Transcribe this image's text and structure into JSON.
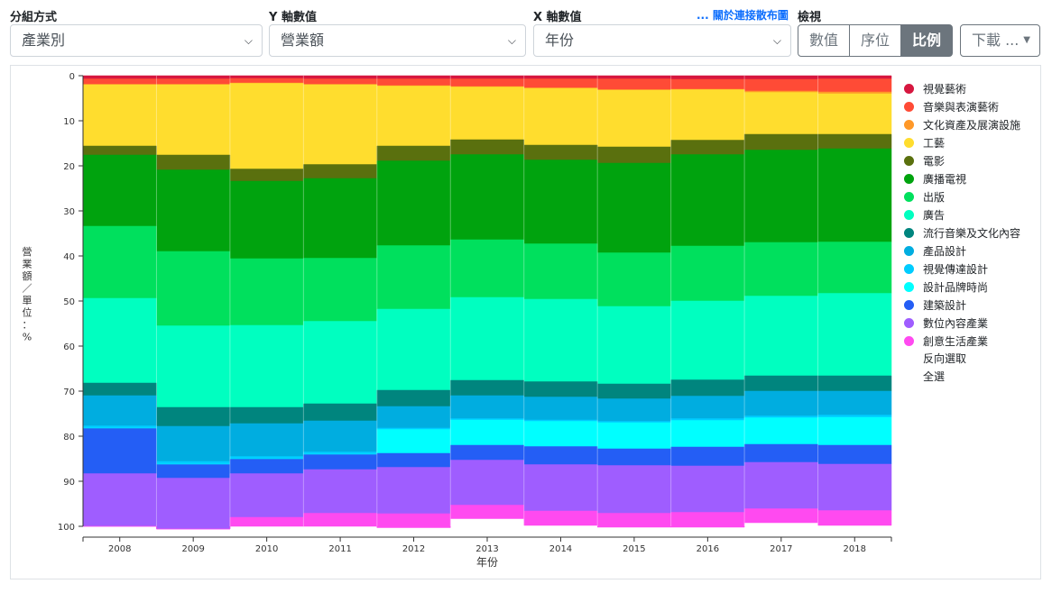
{
  "controls": {
    "group_label": "分組方式",
    "group_value": "產業別",
    "y_label": "Y 軸數值",
    "y_value": "營業額",
    "x_label": "X 軸數值",
    "x_value": "年份",
    "scatter_link": "... 關於連接散布圖",
    "view_label": "檢視",
    "view_buttons": [
      "數值",
      "序位",
      "比例"
    ],
    "active_view": "比例",
    "download_label": "下載 ..."
  },
  "legend": {
    "invert_label": "反向選取",
    "select_all_label": "全選"
  },
  "chart_data": {
    "type": "area",
    "stacked": true,
    "normalized": true,
    "xlabel": "年份",
    "ylabel": "營業額 ／ 單位：%",
    "ylim": [
      0,
      100
    ],
    "y_inverted": true,
    "y_ticks": [
      0,
      10,
      20,
      30,
      40,
      50,
      60,
      70,
      80,
      90,
      100
    ],
    "x": [
      "2008",
      "2009",
      "2010",
      "2011",
      "2012",
      "2013",
      "2014",
      "2015",
      "2016",
      "2017",
      "2018"
    ],
    "legend_position": "right",
    "series": [
      {
        "name": "視覺藝術",
        "color": "#d6173f",
        "values": [
          0.7,
          0.7,
          0.6,
          0.7,
          0.7,
          0.7,
          0.7,
          0.7,
          0.8,
          0.8,
          0.7
        ]
      },
      {
        "name": "音樂與表演藝術",
        "color": "#ff4b36",
        "values": [
          1.2,
          1.2,
          1.0,
          1.2,
          1.5,
          1.7,
          2.0,
          2.4,
          2.2,
          2.6,
          2.9
        ]
      },
      {
        "name": "文化資產及展演設施",
        "color": "#ff9828",
        "values": [
          0.1,
          0.1,
          0.1,
          0.1,
          0.1,
          0.1,
          0.1,
          0.1,
          0.1,
          0.3,
          0.4
        ]
      },
      {
        "name": "工藝",
        "color": "#ffdd2e",
        "values": [
          13.6,
          15.6,
          19.0,
          17.7,
          13.3,
          11.7,
          12.6,
          12.6,
          11.2,
          9.3,
          9.0
        ]
      },
      {
        "name": "電影",
        "color": "#5a700e",
        "values": [
          2.0,
          3.3,
          2.7,
          3.1,
          3.3,
          3.3,
          3.3,
          3.6,
          3.2,
          3.5,
          3.2
        ]
      },
      {
        "name": "廣播電視",
        "color": "#00a30e",
        "values": [
          15.8,
          18.1,
          17.2,
          17.7,
          18.8,
          18.9,
          18.6,
          19.9,
          20.3,
          20.5,
          20.7
        ]
      },
      {
        "name": "出版",
        "color": "#00e05d",
        "values": [
          16.0,
          16.5,
          14.8,
          14.0,
          14.1,
          12.8,
          12.3,
          11.9,
          12.2,
          11.9,
          11.4
        ]
      },
      {
        "name": "廣告",
        "color": "#00ffc0",
        "values": [
          18.8,
          18.1,
          18.2,
          18.3,
          18.0,
          18.4,
          18.3,
          17.2,
          17.5,
          17.7,
          18.3
        ]
      },
      {
        "name": "流行音樂及文化內容",
        "color": "#00857e",
        "values": [
          2.8,
          4.2,
          3.6,
          3.8,
          3.6,
          3.4,
          3.4,
          3.3,
          3.6,
          3.4,
          3.4
        ]
      },
      {
        "name": "產品設計",
        "color": "#00ade0",
        "values": [
          6.7,
          7.8,
          7.3,
          6.9,
          4.8,
          5.1,
          5.1,
          5.0,
          5.0,
          5.5,
          5.3
        ]
      },
      {
        "name": "視覺傳達設計",
        "color": "#00ccff",
        "values": [
          0.5,
          0.6,
          0.5,
          0.5,
          0.3,
          0.3,
          0.3,
          0.3,
          0.4,
          0.4,
          0.5
        ]
      },
      {
        "name": "設計品牌時尚",
        "color": "#00ffff",
        "values": [
          0.1,
          0.1,
          0.1,
          0.1,
          5.3,
          5.6,
          5.6,
          5.8,
          5.9,
          5.9,
          6.2
        ]
      },
      {
        "name": "建築設計",
        "color": "#245ef5",
        "values": [
          10.0,
          3.0,
          3.2,
          3.3,
          3.1,
          3.3,
          4.0,
          3.7,
          4.2,
          4.0,
          4.2
        ]
      },
      {
        "name": "數位內容產業",
        "color": "#9f5dff",
        "values": [
          11.7,
          11.3,
          9.7,
          9.7,
          10.3,
          10.0,
          10.3,
          10.6,
          10.3,
          10.3,
          10.3
        ]
      },
      {
        "name": "創意生活產業",
        "color": "#ff4af0",
        "values": [
          0.0,
          0.0,
          2.0,
          2.9,
          3.1,
          3.0,
          3.2,
          3.1,
          3.3,
          3.1,
          3.3
        ]
      }
    ]
  }
}
